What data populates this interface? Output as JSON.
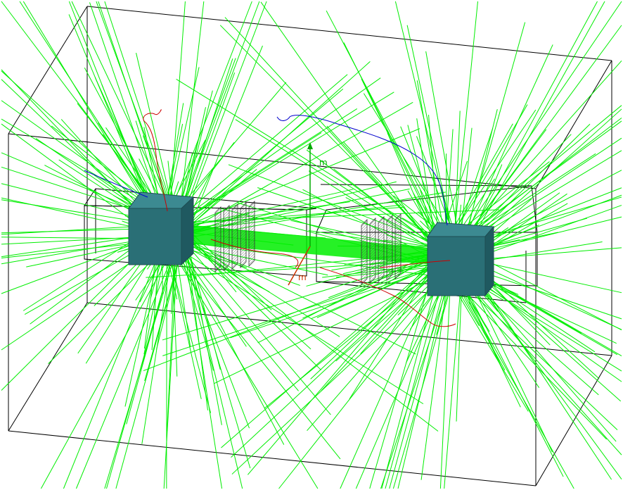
{
  "viewer": {
    "background": "#ffffff",
    "world_edge_color": "#000000",
    "track_color": "#00ee00",
    "red_track_color": "#cc0000",
    "blue_track_color": "#0000cc",
    "block_color": "#2a6f76",
    "block_top_color": "#3c8a91",
    "detector_color": "#333333"
  },
  "axes": {
    "x_label": "m",
    "y_label": "m",
    "z_label": "m",
    "x_color": "#cc3300",
    "y_color": "#00aa00",
    "z_color": "#0000cc"
  },
  "blocks": [
    {
      "name": "left-target-block",
      "label": ""
    },
    {
      "name": "right-target-block",
      "label": ""
    }
  ],
  "detector_groups": [
    {
      "name": "left-detector-stack",
      "planes": 5
    },
    {
      "name": "right-detector-stack",
      "planes": 5
    }
  ]
}
